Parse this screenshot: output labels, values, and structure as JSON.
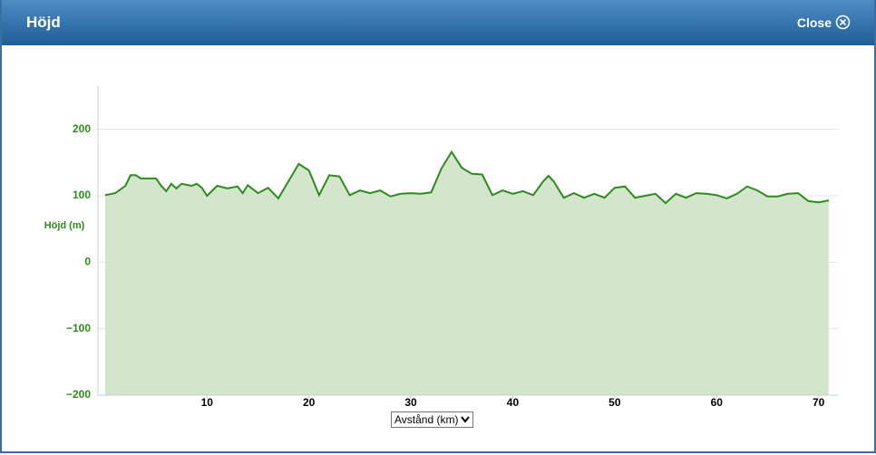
{
  "header": {
    "title": "Höjd",
    "close": "Close"
  },
  "chart_data": {
    "type": "area",
    "y_label": "Höjd (m)",
    "x_selector": "Avstånd (km)",
    "color": "#2e8b1e",
    "fill": "#d3e6cb",
    "grid": true,
    "xlim": [
      -0.7,
      71.9
    ],
    "xticks": [
      10,
      20,
      30,
      40,
      50,
      60,
      70
    ],
    "ylim": [
      -200,
      265
    ],
    "yticks": [
      200,
      100,
      0,
      {
        "value": -100,
        "label": "−100"
      },
      {
        "value": -200,
        "label": "−200"
      }
    ],
    "x": [
      0,
      1,
      2,
      2.5,
      3,
      3.5,
      5,
      5.5,
      6,
      6.5,
      7,
      7.5,
      8.5,
      9,
      9.5,
      10,
      11,
      12,
      13,
      13.5,
      14,
      15,
      16,
      16.5,
      17,
      18,
      19,
      20,
      21,
      22,
      23,
      24,
      25,
      26,
      27,
      28,
      29,
      30,
      31,
      32,
      33,
      34,
      35,
      36,
      37,
      38,
      39,
      40,
      41,
      42,
      43,
      43.5,
      44,
      45,
      46,
      47,
      48,
      49,
      50,
      51,
      52,
      53,
      54,
      55,
      56,
      57,
      58,
      59,
      60,
      61,
      62,
      63,
      64,
      65,
      66,
      67,
      68,
      69,
      70,
      71
    ],
    "values": [
      101,
      104,
      115,
      131,
      131,
      126,
      126,
      115,
      107,
      118,
      111,
      118,
      115,
      118,
      112,
      100,
      115,
      111,
      114,
      104,
      116,
      104,
      112,
      104,
      96,
      122,
      148,
      138,
      101,
      131,
      129,
      101,
      108,
      104,
      108,
      99,
      103,
      104,
      103,
      105,
      141,
      166,
      142,
      133,
      132,
      101,
      108,
      103,
      107,
      101,
      122,
      130,
      122,
      97,
      104,
      97,
      103,
      97,
      112,
      114,
      97,
      100,
      103,
      89,
      103,
      97,
      104,
      103,
      101,
      96,
      103,
      114,
      108,
      99,
      99,
      103,
      104,
      92,
      90,
      93
    ]
  }
}
